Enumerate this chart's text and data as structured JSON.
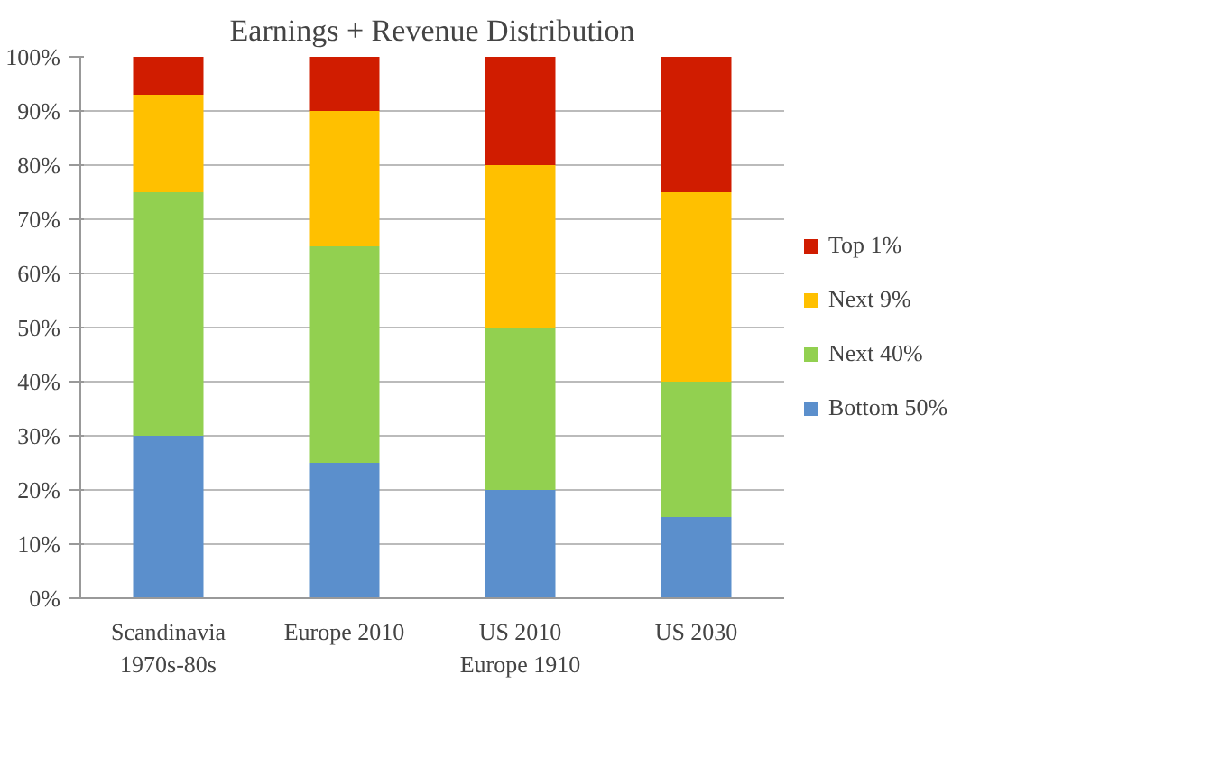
{
  "chart_data": {
    "type": "bar",
    "title": "Earnings + Revenue Distribution",
    "stacked": true,
    "categories": [
      "Scandinavia\n1970s-80s",
      "Europe 2010",
      "US 2010\nEurope 1910",
      "US 2030"
    ],
    "series": [
      {
        "name": "Bottom 50%",
        "color": "#5b8fcc",
        "values": [
          30,
          25,
          20,
          15
        ]
      },
      {
        "name": "Next 40%",
        "color": "#92d050",
        "values": [
          45,
          40,
          30,
          25
        ]
      },
      {
        "name": "Next 9%",
        "color": "#ffc000",
        "values": [
          18,
          25,
          30,
          35
        ]
      },
      {
        "name": "Top 1%",
        "color": "#d01c00",
        "values": [
          7,
          10,
          20,
          25
        ]
      }
    ],
    "ylim": [
      0,
      100
    ],
    "yticks": [
      {
        "value": 0,
        "label": "0%"
      },
      {
        "value": 10,
        "label": "10%"
      },
      {
        "value": 20,
        "label": "20%"
      },
      {
        "value": 30,
        "label": "30%"
      },
      {
        "value": 40,
        "label": "40%"
      },
      {
        "value": 50,
        "label": "50%"
      },
      {
        "value": 60,
        "label": "60%"
      },
      {
        "value": 70,
        "label": "70%"
      },
      {
        "value": 80,
        "label": "80%"
      },
      {
        "value": 90,
        "label": "90%"
      },
      {
        "value": 100,
        "label": "100%"
      }
    ],
    "grid": "y",
    "legend": "right"
  }
}
